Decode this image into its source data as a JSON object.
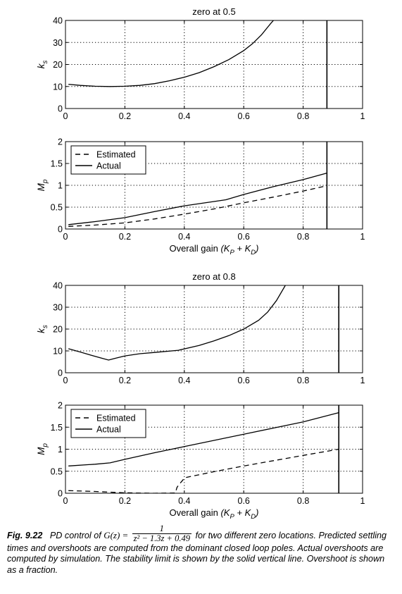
{
  "chart_data": [
    {
      "type": "line",
      "title": "zero at 0.5",
      "xlabel": "",
      "ylabel": "k_s",
      "xlim": [
        0,
        1
      ],
      "ylim": [
        0,
        40
      ],
      "xticks": [
        0,
        0.2,
        0.4,
        0.6,
        0.8,
        1
      ],
      "yticks": [
        0,
        10,
        20,
        30,
        40
      ],
      "grid": true,
      "stability_limit": 0.88,
      "series": [
        {
          "style": "solid",
          "x": [
            0.01,
            0.05,
            0.1,
            0.15,
            0.2,
            0.25,
            0.3,
            0.35,
            0.4,
            0.45,
            0.5,
            0.55,
            0.6,
            0.63,
            0.66,
            0.69,
            0.7
          ],
          "y": [
            11,
            10.5,
            10.1,
            10,
            10.1,
            10.5,
            11.3,
            12.6,
            14.2,
            16.3,
            19,
            22.2,
            26.3,
            29.5,
            33.5,
            38.5,
            40
          ]
        }
      ]
    },
    {
      "type": "line",
      "title": "",
      "xlabel": "Overall gain",
      "xlabel_expr": [
        "(K",
        "P",
        " + K",
        "D",
        ")"
      ],
      "ylabel": "M_p",
      "xlim": [
        0,
        1
      ],
      "ylim": [
        0,
        2
      ],
      "xticks": [
        0,
        0.2,
        0.4,
        0.6,
        0.8,
        1
      ],
      "yticks": [
        0,
        0.5,
        1,
        1.5,
        2
      ],
      "grid": true,
      "legend": "top-left",
      "stability_limit": 0.88,
      "series": [
        {
          "name": "Estimated",
          "style": "dashed",
          "x": [
            0.01,
            0.1,
            0.2,
            0.3,
            0.4,
            0.5,
            0.6,
            0.7,
            0.8,
            0.88
          ],
          "y": [
            0.06,
            0.09,
            0.14,
            0.23,
            0.34,
            0.46,
            0.6,
            0.73,
            0.87,
            0.99
          ]
        },
        {
          "name": "Actual",
          "style": "solid",
          "x": [
            0.01,
            0.1,
            0.2,
            0.3,
            0.4,
            0.54,
            0.6,
            0.7,
            0.8,
            0.88
          ],
          "y": [
            0.1,
            0.17,
            0.26,
            0.4,
            0.53,
            0.67,
            0.79,
            0.97,
            1.13,
            1.28
          ]
        }
      ]
    },
    {
      "type": "line",
      "title": "zero at 0.8",
      "xlabel": "",
      "ylabel": "k_s",
      "xlim": [
        0,
        1
      ],
      "ylim": [
        0,
        40
      ],
      "xticks": [
        0,
        0.2,
        0.4,
        0.6,
        0.8,
        1
      ],
      "yticks": [
        0,
        10,
        20,
        30,
        40
      ],
      "grid": true,
      "stability_limit": 0.92,
      "series": [
        {
          "style": "solid",
          "x": [
            0.01,
            0.05,
            0.1,
            0.145,
            0.17,
            0.2,
            0.25,
            0.3,
            0.38,
            0.45,
            0.5,
            0.55,
            0.6,
            0.65,
            0.68,
            0.71,
            0.74
          ],
          "y": [
            11,
            9.5,
            7.5,
            5.8,
            6.7,
            7.7,
            8.7,
            9.3,
            10.3,
            12.5,
            14.6,
            17,
            20,
            24,
            27.7,
            33,
            40
          ]
        }
      ]
    },
    {
      "type": "line",
      "title": "",
      "xlabel": "Overall gain",
      "xlabel_expr": [
        "(K",
        "P",
        " + K",
        "D",
        ")"
      ],
      "ylabel": "M_p",
      "xlim": [
        0,
        1
      ],
      "ylim": [
        0,
        2
      ],
      "xticks": [
        0,
        0.2,
        0.4,
        0.6,
        0.8,
        1
      ],
      "yticks": [
        0,
        0.5,
        1,
        1.5,
        2
      ],
      "grid": true,
      "legend": "top-left",
      "stability_limit": 0.92,
      "series": [
        {
          "name": "Estimated",
          "style": "dashed",
          "x": [
            0.01,
            0.1,
            0.2,
            0.3,
            0.37,
            0.375,
            0.38,
            0.395,
            0.4,
            0.5,
            0.6,
            0.7,
            0.8,
            0.92
          ],
          "y": [
            0.06,
            0.04,
            0.01,
            0.0,
            0.005,
            0.13,
            0.18,
            0.3,
            0.35,
            0.49,
            0.62,
            0.74,
            0.86,
            1.0
          ]
        },
        {
          "name": "Actual",
          "style": "solid",
          "x": [
            0.01,
            0.1,
            0.15,
            0.2,
            0.3,
            0.4,
            0.5,
            0.6,
            0.7,
            0.8,
            0.92
          ],
          "y": [
            0.62,
            0.66,
            0.69,
            0.77,
            0.92,
            1.06,
            1.2,
            1.34,
            1.48,
            1.62,
            1.83
          ]
        }
      ]
    }
  ],
  "caption": {
    "label": "Fig. 9.22",
    "lead": "PD control of ",
    "gz": "G(z) = ",
    "numerator": "1",
    "denominator": "z² − 1.3z + 0.49",
    "body": "for two different zero locations. Predicted settling times and overshoots are computed from the dominant closed loop poles. Actual overshoots are computed by simulation. The stability limit is shown by the solid vertical line. Overshoot is shown as a fraction."
  }
}
